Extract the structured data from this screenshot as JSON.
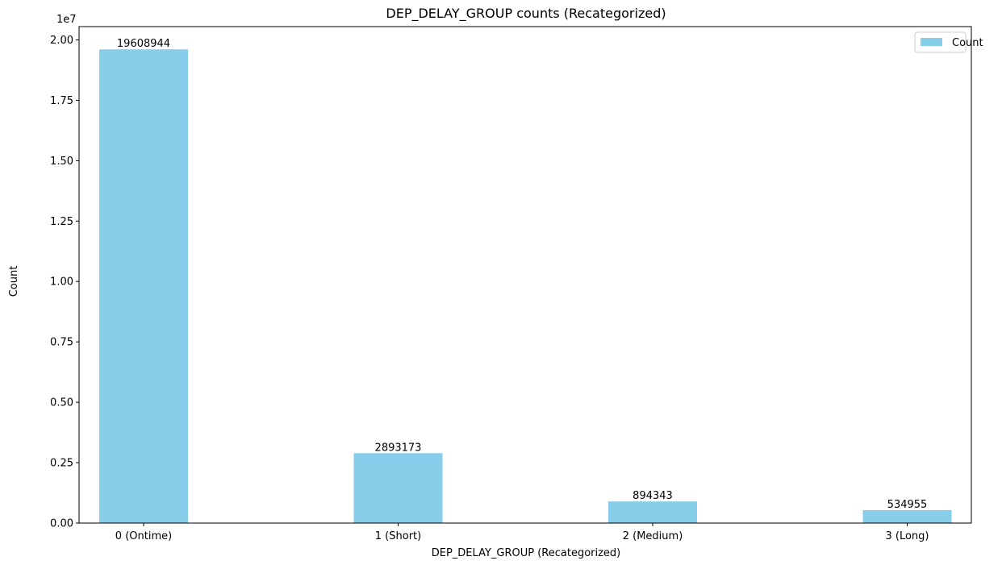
{
  "chart_data": {
    "type": "bar",
    "title": "DEP_DELAY_GROUP counts (Recategorized)",
    "xlabel": "DEP_DELAY_GROUP (Recategorized)",
    "ylabel": "Count",
    "categories": [
      "0 (Ontime)",
      "1 (Short)",
      "2 (Medium)",
      "3 (Long)"
    ],
    "series": [
      {
        "name": "Count",
        "values": [
          19608944,
          2893173,
          894343,
          534955
        ],
        "color": "#87ceeb"
      }
    ],
    "bar_labels": [
      "19608944",
      "2893173",
      "894343",
      "534955"
    ],
    "ylim": [
      0,
      20550000
    ],
    "y_ticks": [
      0,
      2500000,
      5000000,
      7500000,
      10000000,
      12500000,
      15000000,
      17500000,
      20000000
    ],
    "y_tick_labels": [
      "0.00",
      "0.25",
      "0.50",
      "0.75",
      "1.00",
      "1.25",
      "1.50",
      "1.75",
      "2.00"
    ],
    "y_offset_label": "1e7",
    "grid": false,
    "legend": {
      "position": "top-right",
      "label": "Count"
    }
  }
}
